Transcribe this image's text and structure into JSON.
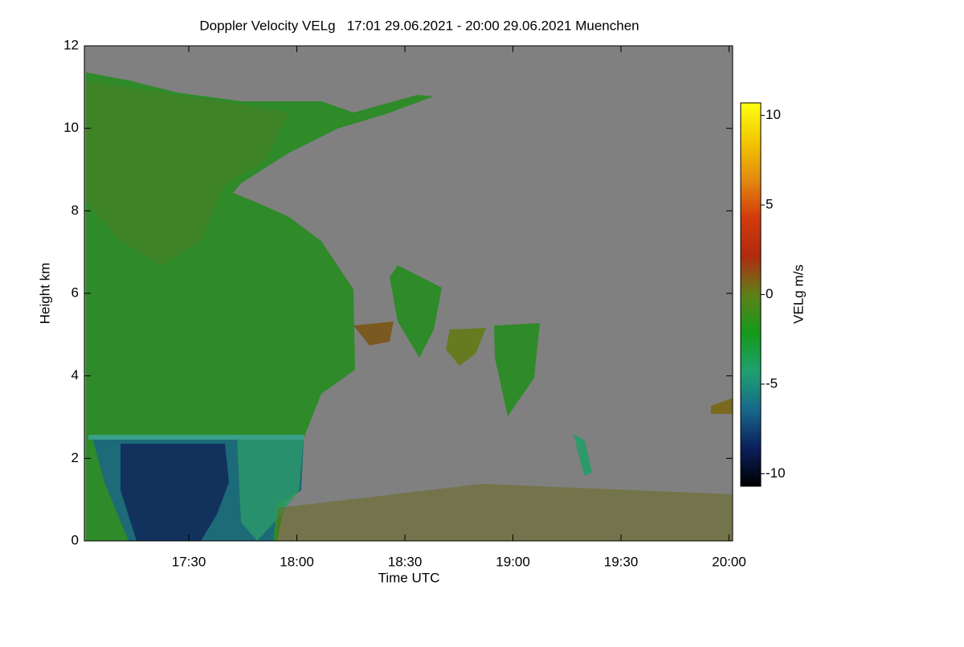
{
  "chart_data": {
    "type": "heatmap",
    "title": "Doppler Velocity VELg   17:01 29.06.2021 - 20:00 29.06.2021 Muenchen",
    "x_label": "Time UTC",
    "y_label": "Height km",
    "xlim": [
      1021,
      1201
    ],
    "xticks": [
      {
        "value": 1050,
        "label": "17:30"
      },
      {
        "value": 1080,
        "label": "18:00"
      },
      {
        "value": 1110,
        "label": "18:30"
      },
      {
        "value": 1140,
        "label": "19:00"
      },
      {
        "value": 1170,
        "label": "19:30"
      },
      {
        "value": 1200,
        "label": "20:00"
      }
    ],
    "ylim": [
      0,
      12
    ],
    "yticks": [
      0,
      2,
      4,
      6,
      8,
      10,
      12
    ],
    "colorbar": {
      "label": "VELg m/s",
      "lim": [
        -10.7,
        10.7
      ],
      "ticks": [
        -10,
        -5,
        0,
        5,
        10
      ],
      "colormap": [
        "#000000",
        "#0b1f5c",
        "#17698a",
        "#1fa070",
        "#149a1a",
        "#5f8018",
        "#b02a10",
        "#d23a0c",
        "#e48a10",
        "#f2c800",
        "#ffff10"
      ]
    },
    "background": "#808080"
  }
}
